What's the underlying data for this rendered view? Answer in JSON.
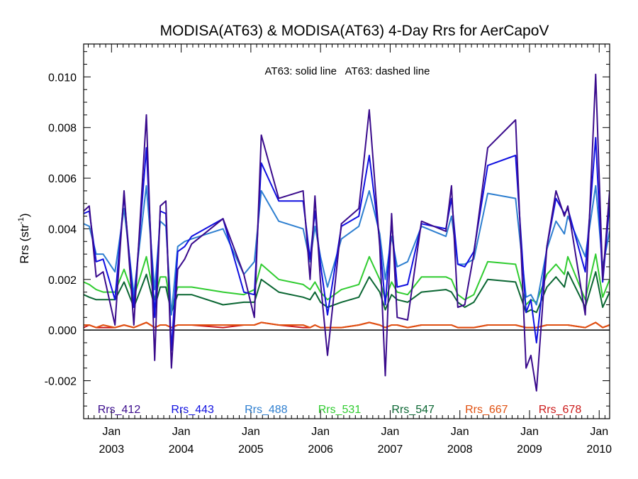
{
  "chart_data": {
    "type": "line",
    "title": "MODISA(AT63) & MODISA(AT63) 4-Day Rrs for AerCapoV",
    "ylabel": "Rrs (str",
    "ylabel_sup": "-1",
    "ylabel_close": ")",
    "annotation": "AT63: solid line   AT63: dashed line",
    "xlim": [
      2002.6,
      2010.15
    ],
    "ylim": [
      -0.0035,
      0.0113
    ],
    "y_ticks": [
      -0.002,
      0.0,
      0.002,
      0.004,
      0.006,
      0.008,
      0.01
    ],
    "y_tick_labels": [
      "-0.002",
      "0.000",
      "0.002",
      "0.004",
      "0.006",
      "0.008",
      "0.010"
    ],
    "x_ticks": [
      {
        "x": 2003.0,
        "month": "Jan",
        "year": "2003"
      },
      {
        "x": 2004.0,
        "month": "Jan",
        "year": "2004"
      },
      {
        "x": 2005.0,
        "month": "Jan",
        "year": "2005"
      },
      {
        "x": 2006.0,
        "month": "Jan",
        "year": "2006"
      },
      {
        "x": 2007.0,
        "month": "Jan",
        "year": "2007"
      },
      {
        "x": 2008.0,
        "month": "Jan",
        "year": "2008"
      },
      {
        "x": 2009.0,
        "month": "Jan",
        "year": "2009"
      },
      {
        "x": 2010.0,
        "month": "Jan",
        "year": "2010"
      }
    ],
    "zero_line": 0.0,
    "x": [
      2002.6,
      2002.68,
      2002.78,
      2002.88,
      2003.05,
      2003.18,
      2003.32,
      2003.5,
      2003.62,
      2003.7,
      2003.78,
      2003.86,
      2003.95,
      2004.05,
      2004.15,
      2004.6,
      2004.9,
      2005.05,
      2005.15,
      2005.4,
      2005.75,
      2005.85,
      2005.92,
      2006.0,
      2006.1,
      2006.3,
      2006.55,
      2006.7,
      2006.85,
      2006.93,
      2007.02,
      2007.1,
      2007.25,
      2007.45,
      2007.8,
      2007.88,
      2007.97,
      2008.07,
      2008.2,
      2008.4,
      2008.8,
      2008.95,
      2009.02,
      2009.1,
      2009.25,
      2009.38,
      2009.5,
      2009.55,
      2009.8,
      2009.95,
      2010.05,
      2010.15
    ],
    "series": [
      {
        "name": "Rrs_412",
        "color": "#3a0b8c",
        "values": [
          0.0047,
          0.0049,
          0.0021,
          0.0023,
          0.0002,
          0.0055,
          0.0002,
          0.0085,
          -0.0012,
          0.0049,
          0.0051,
          -0.0015,
          0.0024,
          0.0028,
          0.0034,
          0.0044,
          0.0022,
          0.0005,
          0.0077,
          0.0052,
          0.0055,
          0.002,
          0.0053,
          0.0019,
          -0.001,
          0.0042,
          0.0048,
          0.0087,
          0.0033,
          -0.0018,
          0.0046,
          0.0005,
          0.0004,
          0.0043,
          0.0039,
          0.0057,
          0.0009,
          0.001,
          0.003,
          0.0072,
          0.0083,
          -0.0015,
          -0.001,
          -0.0024,
          0.0033,
          0.0055,
          0.0045,
          0.0049,
          0.0006,
          0.0101,
          0.002,
          0.0055
        ]
      },
      {
        "name": "Rrs_443",
        "color": "#1010e0",
        "values": [
          0.0046,
          0.0047,
          0.0027,
          0.0028,
          0.0012,
          0.0053,
          0.0009,
          0.0072,
          0.0005,
          0.0047,
          0.0046,
          -0.0008,
          0.0031,
          0.0033,
          0.0037,
          0.0044,
          0.0015,
          0.0014,
          0.0066,
          0.0051,
          0.0051,
          0.0028,
          0.0047,
          0.0026,
          0.0006,
          0.0041,
          0.0045,
          0.0069,
          0.0035,
          0.001,
          0.0043,
          0.0017,
          0.0018,
          0.0042,
          0.004,
          0.0052,
          0.0026,
          0.0025,
          0.0031,
          0.0065,
          0.0069,
          0.0007,
          0.0012,
          -0.0005,
          0.0033,
          0.0052,
          0.0046,
          0.0048,
          0.0023,
          0.0076,
          0.0019,
          0.005
        ]
      },
      {
        "name": "Rrs_488",
        "color": "#2e7fd0",
        "values": [
          0.0042,
          0.0041,
          0.003,
          0.003,
          0.0023,
          0.0048,
          0.0014,
          0.0057,
          0.0016,
          0.0043,
          0.0041,
          0.0006,
          0.0033,
          0.0035,
          0.0036,
          0.004,
          0.0022,
          0.0027,
          0.0055,
          0.0043,
          0.004,
          0.0027,
          0.0041,
          0.0029,
          0.0017,
          0.0036,
          0.0041,
          0.0055,
          0.0038,
          0.002,
          0.0037,
          0.0025,
          0.0027,
          0.0041,
          0.0037,
          0.0045,
          0.0026,
          0.0026,
          0.0028,
          0.0054,
          0.0052,
          0.0013,
          0.0014,
          0.001,
          0.0032,
          0.0043,
          0.0038,
          0.0045,
          0.0029,
          0.0057,
          0.0025,
          0.0039
        ]
      },
      {
        "name": "Rrs_531",
        "color": "#30cc30",
        "values": [
          0.0019,
          0.0018,
          0.0016,
          0.0015,
          0.0015,
          0.0024,
          0.0013,
          0.0029,
          0.0012,
          0.0021,
          0.0021,
          0.0008,
          0.0017,
          0.0017,
          0.0017,
          0.0015,
          0.0014,
          0.0016,
          0.0026,
          0.002,
          0.0018,
          0.0016,
          0.0019,
          0.0015,
          0.0012,
          0.0016,
          0.0018,
          0.0029,
          0.002,
          0.0012,
          0.0019,
          0.0015,
          0.0014,
          0.0021,
          0.0021,
          0.002,
          0.0014,
          0.0012,
          0.0014,
          0.0027,
          0.0026,
          0.001,
          0.0012,
          0.0011,
          0.0022,
          0.0026,
          0.0022,
          0.0029,
          0.0012,
          0.003,
          0.0013,
          0.002
        ]
      },
      {
        "name": "Rrs_547",
        "color": "#0a6632",
        "values": [
          0.0014,
          0.0013,
          0.0012,
          0.0012,
          0.0012,
          0.0019,
          0.0009,
          0.0022,
          0.0009,
          0.0017,
          0.0017,
          0.0007,
          0.0014,
          0.0014,
          0.0014,
          0.001,
          0.0011,
          0.0011,
          0.002,
          0.0015,
          0.0013,
          0.0012,
          0.0015,
          0.0011,
          0.0009,
          0.0011,
          0.0013,
          0.0021,
          0.0015,
          0.0008,
          0.0014,
          0.0012,
          0.0011,
          0.0015,
          0.0016,
          0.0015,
          0.0011,
          0.0009,
          0.0011,
          0.002,
          0.0019,
          0.0007,
          0.0008,
          0.0007,
          0.0017,
          0.0021,
          0.0017,
          0.0023,
          0.0009,
          0.0023,
          0.0009,
          0.0015
        ]
      },
      {
        "name": "Rrs_667",
        "color": "#e05010",
        "values": [
          0.0002,
          0.0002,
          0.0001,
          0.0002,
          0.0001,
          0.0002,
          0.0001,
          0.0003,
          0.0001,
          0.0002,
          0.0002,
          0.0001,
          0.0002,
          0.0002,
          0.0002,
          0.0002,
          0.0002,
          0.0002,
          0.0003,
          0.0002,
          0.0002,
          0.0001,
          0.0002,
          0.0001,
          0.0001,
          0.0001,
          0.0002,
          0.0003,
          0.0002,
          0.0001,
          0.0002,
          0.0002,
          0.0001,
          0.0002,
          0.0002,
          0.0002,
          0.0001,
          0.0001,
          0.0001,
          0.0002,
          0.0002,
          0.0001,
          0.0001,
          0.0001,
          0.0002,
          0.0002,
          0.0002,
          0.0002,
          0.0001,
          0.0003,
          0.0001,
          0.0002
        ]
      },
      {
        "name": "Rrs_678",
        "color": "#cc1a1a",
        "values": [
          0.0001,
          0.0002,
          0.0001,
          0.0001,
          0.0001,
          0.0002,
          0.0001,
          0.0003,
          0.0001,
          0.0002,
          0.0002,
          0.0001,
          0.0002,
          0.0002,
          0.0002,
          0.0001,
          0.0002,
          0.0002,
          0.0003,
          0.0002,
          0.0001,
          0.0001,
          0.0002,
          0.0001,
          0.0001,
          0.0001,
          0.0002,
          0.0003,
          0.0002,
          0.0001,
          0.0002,
          0.0002,
          0.0001,
          0.0002,
          0.0002,
          0.0002,
          0.0001,
          0.0001,
          0.0001,
          0.0002,
          0.0002,
          0.0001,
          0.0001,
          0.0001,
          0.0002,
          0.0002,
          0.0002,
          0.0002,
          0.0001,
          0.0003,
          0.0001,
          0.0002
        ]
      }
    ]
  }
}
